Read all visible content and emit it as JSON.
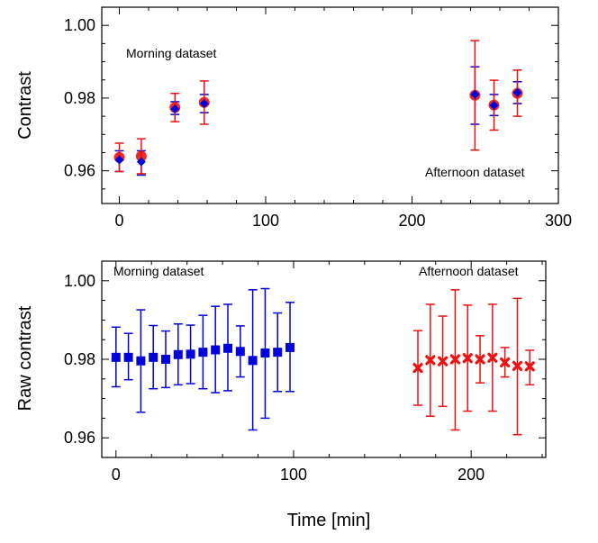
{
  "colors": {
    "blue": "#0000dd",
    "red": "#ee1111"
  },
  "chart_data": [
    {
      "type": "scatter",
      "ylabel": "Contrast",
      "xlim": [
        -12,
        300
      ],
      "ylim": [
        0.951,
        1.005
      ],
      "xticks": [
        0,
        100,
        200,
        300
      ],
      "yticks": [
        0.96,
        0.98,
        1.0
      ],
      "ytick_labels": [
        "0.96",
        "0.98",
        "1.00"
      ],
      "annotations": [
        "Morning dataset",
        "Afternoon dataset"
      ],
      "series": [
        {
          "color": "blue",
          "marker": "diamond",
          "points": [
            {
              "x": 0,
              "y": 0.963,
              "lo": 0.9598,
              "hi": 0.9655
            },
            {
              "x": 15,
              "y": 0.9625,
              "lo": 0.9588,
              "hi": 0.9655
            },
            {
              "x": 38,
              "y": 0.977,
              "lo": 0.9755,
              "hi": 0.979
            },
            {
              "x": 58,
              "y": 0.9785,
              "lo": 0.976,
              "hi": 0.981
            },
            {
              "x": 243,
              "y": 0.981,
              "lo": 0.9728,
              "hi": 0.9886
            },
            {
              "x": 256,
              "y": 0.978,
              "lo": 0.9752,
              "hi": 0.981
            },
            {
              "x": 272,
              "y": 0.9815,
              "lo": 0.9785,
              "hi": 0.9845
            }
          ]
        },
        {
          "color": "red",
          "marker": "circle",
          "points": [
            {
              "x": 0,
              "y": 0.9637,
              "lo": 0.9598,
              "hi": 0.9676
            },
            {
              "x": 15,
              "y": 0.964,
              "lo": 0.9592,
              "hi": 0.9688
            },
            {
              "x": 38,
              "y": 0.9774,
              "lo": 0.9735,
              "hi": 0.9813
            },
            {
              "x": 58,
              "y": 0.9788,
              "lo": 0.9728,
              "hi": 0.9847
            },
            {
              "x": 243,
              "y": 0.9808,
              "lo": 0.9657,
              "hi": 0.9958
            },
            {
              "x": 256,
              "y": 0.9781,
              "lo": 0.9712,
              "hi": 0.9849
            },
            {
              "x": 272,
              "y": 0.9813,
              "lo": 0.975,
              "hi": 0.9877
            }
          ]
        }
      ]
    },
    {
      "type": "scatter",
      "ylabel": "Raw contrast",
      "xlabel": "Time [min]",
      "xlim": [
        -8,
        242
      ],
      "ylim": [
        0.955,
        1.005
      ],
      "xticks": [
        0,
        100,
        200
      ],
      "yticks": [
        0.96,
        0.98,
        1.0
      ],
      "ytick_labels": [
        "0.96",
        "0.98",
        "1.00"
      ],
      "annotations": [
        "Morning dataset",
        "Afternoon dataset"
      ],
      "series": [
        {
          "color": "blue",
          "marker": "square",
          "points": [
            {
              "x": 0,
              "y": 0.9805,
              "lo": 0.973,
              "hi": 0.9882
            },
            {
              "x": 7,
              "y": 0.9805,
              "lo": 0.9748,
              "hi": 0.9866
            },
            {
              "x": 14,
              "y": 0.9796,
              "lo": 0.9665,
              "hi": 0.9926
            },
            {
              "x": 21,
              "y": 0.9805,
              "lo": 0.9725,
              "hi": 0.9886
            },
            {
              "x": 28,
              "y": 0.98,
              "lo": 0.9728,
              "hi": 0.9872
            },
            {
              "x": 35,
              "y": 0.9812,
              "lo": 0.9735,
              "hi": 0.989
            },
            {
              "x": 42,
              "y": 0.9813,
              "lo": 0.9738,
              "hi": 0.9887
            },
            {
              "x": 49,
              "y": 0.9818,
              "lo": 0.9725,
              "hi": 0.9912
            },
            {
              "x": 56,
              "y": 0.9824,
              "lo": 0.9715,
              "hi": 0.9935
            },
            {
              "x": 63,
              "y": 0.9828,
              "lo": 0.972,
              "hi": 0.994
            },
            {
              "x": 70,
              "y": 0.982,
              "lo": 0.9755,
              "hi": 0.9885
            },
            {
              "x": 77,
              "y": 0.9797,
              "lo": 0.962,
              "hi": 0.9977
            },
            {
              "x": 84,
              "y": 0.9816,
              "lo": 0.965,
              "hi": 0.998
            },
            {
              "x": 91,
              "y": 0.9818,
              "lo": 0.9718,
              "hi": 0.9918
            },
            {
              "x": 98,
              "y": 0.983,
              "lo": 0.9718,
              "hi": 0.9945
            }
          ]
        },
        {
          "color": "red",
          "marker": "x",
          "points": [
            {
              "x": 170,
              "y": 0.9778,
              "lo": 0.9683,
              "hi": 0.9873
            },
            {
              "x": 177,
              "y": 0.9798,
              "lo": 0.9655,
              "hi": 0.994
            },
            {
              "x": 184,
              "y": 0.9795,
              "lo": 0.968,
              "hi": 0.991
            },
            {
              "x": 191,
              "y": 0.98,
              "lo": 0.962,
              "hi": 0.9977
            },
            {
              "x": 198,
              "y": 0.9803,
              "lo": 0.9668,
              "hi": 0.9938
            },
            {
              "x": 205,
              "y": 0.98,
              "lo": 0.974,
              "hi": 0.986
            },
            {
              "x": 212,
              "y": 0.9804,
              "lo": 0.9668,
              "hi": 0.994
            },
            {
              "x": 219,
              "y": 0.9792,
              "lo": 0.9755,
              "hi": 0.983
            },
            {
              "x": 226,
              "y": 0.9783,
              "lo": 0.9608,
              "hi": 0.9955
            },
            {
              "x": 233,
              "y": 0.9782,
              "lo": 0.9735,
              "hi": 0.9823
            }
          ]
        }
      ]
    }
  ]
}
